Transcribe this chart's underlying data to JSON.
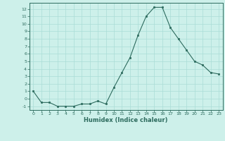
{
  "x": [
    0,
    1,
    2,
    3,
    4,
    5,
    6,
    7,
    8,
    9,
    10,
    11,
    12,
    13,
    14,
    15,
    16,
    17,
    18,
    19,
    20,
    21,
    22,
    23
  ],
  "y": [
    1,
    -0.5,
    -0.5,
    -1,
    -1,
    -1,
    -0.7,
    -0.7,
    -0.3,
    -0.7,
    1.5,
    3.5,
    5.5,
    8.5,
    11,
    12.2,
    12.2,
    9.5,
    8,
    6.5,
    5,
    4.5,
    3.5,
    3.3
  ],
  "xlabel": "Humidex (Indice chaleur)",
  "line_color": "#2d6b5e",
  "bg_color": "#cdf0ea",
  "grid_color": "#aaddd6",
  "tick_color": "#2d6b5e",
  "ylim": [
    -1.5,
    12.8
  ],
  "xlim": [
    -0.5,
    23.5
  ],
  "yticks": [
    -1,
    0,
    1,
    2,
    3,
    4,
    5,
    6,
    7,
    8,
    9,
    10,
    11,
    12
  ],
  "xticks": [
    0,
    1,
    2,
    3,
    4,
    5,
    6,
    7,
    8,
    9,
    10,
    11,
    12,
    13,
    14,
    15,
    16,
    17,
    18,
    19,
    20,
    21,
    22,
    23
  ]
}
